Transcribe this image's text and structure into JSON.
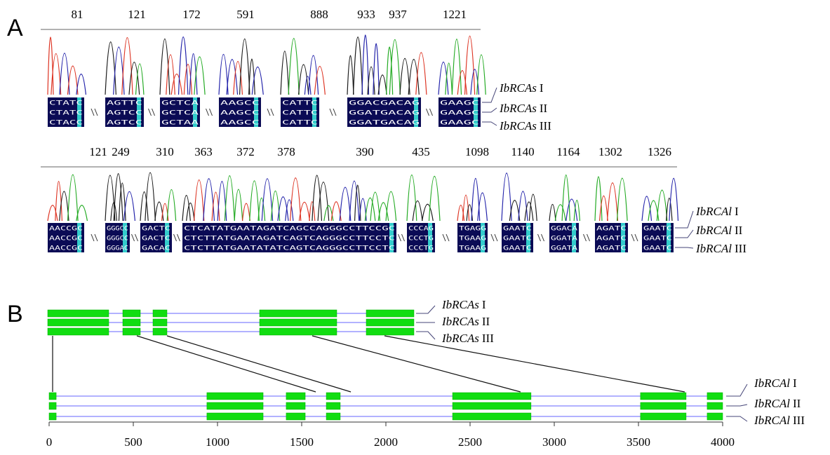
{
  "panel_a": {
    "label": "A",
    "group1": {
      "positions": [
        81,
        121,
        172,
        591,
        888,
        933,
        937,
        1221
      ],
      "sequences": [
        [
          "CTATC",
          "CTATC",
          "CTACC"
        ],
        [
          "AGTTC",
          "AGTCC",
          "AGTCC"
        ],
        [
          "GCTCA",
          "GCTCA",
          "GCTAA"
        ],
        [
          "AAGCC",
          "AAGCC",
          "AAGCC"
        ],
        [
          "CATTC",
          "CATTC",
          "CATTC"
        ],
        [
          "GGACGACAG",
          "GGATGACAG",
          "GGATGACAG"
        ],
        [
          "GAAGC",
          "GAAGC",
          "GAAGC"
        ]
      ],
      "labels": [
        {
          "gene": "IbRCAs",
          "variant": "I"
        },
        {
          "gene": "IbRCAs",
          "variant": "II"
        },
        {
          "gene": "IbRCAs",
          "variant": "III"
        }
      ]
    },
    "group2": {
      "positions": [
        121,
        249,
        310,
        363,
        372,
        378,
        390,
        435,
        1098,
        1140,
        1164,
        1302,
        1326
      ],
      "sequences": [
        [
          "AACCGC",
          "AACCGC",
          "AACCGC"
        ],
        [
          "GGGCC",
          "GGGCC",
          "GGGAC"
        ],
        [
          "GACTC",
          "GACTC",
          "GACAC"
        ],
        [
          "CTCATATGAATAGATCAGCCAGGGCCTTCCGC",
          "CTCTTATGAATAGATCAGTCAGGGCCTTCCTC",
          "CTCTTATGAATATATCAGTCAGGGCCTTCCTC"
        ],
        [
          "CCCAG",
          "CCCTG",
          "CCCTG"
        ],
        [
          "TGAGG",
          "TGAAG",
          "TGAAG"
        ],
        [
          "GAATC",
          "GAATC",
          "GAATC"
        ],
        [
          "GGACA",
          "GGATA",
          "GGATA"
        ],
        [
          "AGATC",
          "AGATC",
          "AGATC"
        ],
        [
          "GAATC",
          "GAATC",
          "GAATC"
        ]
      ],
      "labels": [
        {
          "gene": "IbRCAl",
          "variant": "I"
        },
        {
          "gene": "IbRCAl",
          "variant": "II"
        },
        {
          "gene": "IbRCAl",
          "variant": "III"
        }
      ]
    }
  },
  "panel_b": {
    "label": "B",
    "top_labels": [
      {
        "gene": "IbRCAs",
        "variant": "I"
      },
      {
        "gene": "IbRCAs",
        "variant": "II"
      },
      {
        "gene": "IbRCAs",
        "variant": "III"
      }
    ],
    "bottom_labels": [
      {
        "gene": "IbRCAl",
        "variant": "I"
      },
      {
        "gene": "IbRCAl",
        "variant": "II"
      },
      {
        "gene": "IbRCAl",
        "variant": "III"
      }
    ],
    "bottom_exons": [
      [
        0,
        42
      ],
      [
        937,
        1271
      ],
      [
        1408,
        1521
      ],
      [
        1646,
        1729
      ],
      [
        2396,
        2862
      ],
      [
        3512,
        3783
      ],
      [
        3908,
        4000
      ]
    ],
    "xlim": [
      0,
      4000
    ],
    "xticks": [
      0,
      500,
      1000,
      1500,
      2000,
      2500,
      3000,
      3500,
      4000
    ]
  }
}
